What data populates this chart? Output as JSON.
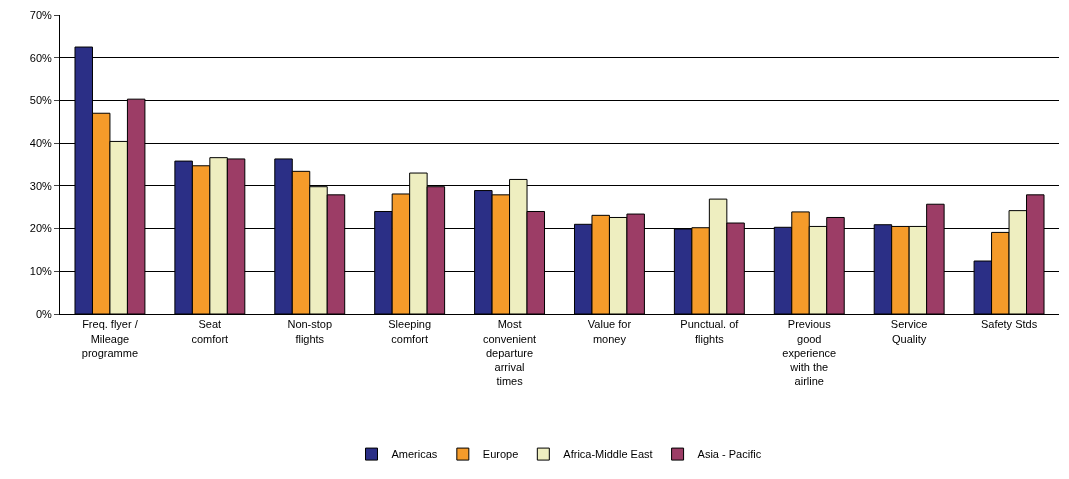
{
  "chart_data": {
    "type": "bar",
    "categories": [
      "Freq. flyer /\nMileage\nprogramme",
      "Seat\ncomfort",
      "Non-stop\nflights",
      "Sleeping\ncomfort",
      "Most\nconvenient\ndeparture\narrival\ntimes",
      "Value for\nmoney",
      "Punctual. of\nflights",
      "Previous\ngood\nexperience\nwith the\nairline",
      "Service\nQuality",
      "Safety Stds"
    ],
    "series": [
      {
        "name": "Americas",
        "color": "#2b2f86",
        "values": [
          62.5,
          35.8,
          36.3,
          24.0,
          28.9,
          21.0,
          19.9,
          20.3,
          20.9,
          12.4
        ]
      },
      {
        "name": "Europe",
        "color": "#f59b2a",
        "values": [
          47.0,
          34.7,
          33.4,
          28.1,
          27.9,
          23.1,
          20.2,
          23.9,
          20.5,
          19.1
        ]
      },
      {
        "name": "Africa-Middle East",
        "color": "#eeeec0",
        "values": [
          40.4,
          36.6,
          29.8,
          33.0,
          31.5,
          22.6,
          26.9,
          20.5,
          20.5,
          24.2
        ]
      },
      {
        "name": "Asia - Pacific",
        "color": "#9c3d66",
        "values": [
          50.3,
          36.3,
          27.9,
          29.8,
          24.0,
          23.4,
          21.3,
          22.6,
          25.7,
          27.9
        ]
      }
    ],
    "ylim": [
      0,
      70
    ],
    "yticks": [
      {
        "value": 0,
        "label": "0%"
      },
      {
        "value": 10,
        "label": "10%"
      },
      {
        "value": 20,
        "label": "20%"
      },
      {
        "value": 30,
        "label": "30%"
      },
      {
        "value": 40,
        "label": "40%"
      },
      {
        "value": 50,
        "label": "50%"
      },
      {
        "value": 60,
        "label": "60%"
      },
      {
        "value": 70,
        "label": "70%"
      }
    ],
    "grid": "y",
    "legend": "bottom"
  }
}
